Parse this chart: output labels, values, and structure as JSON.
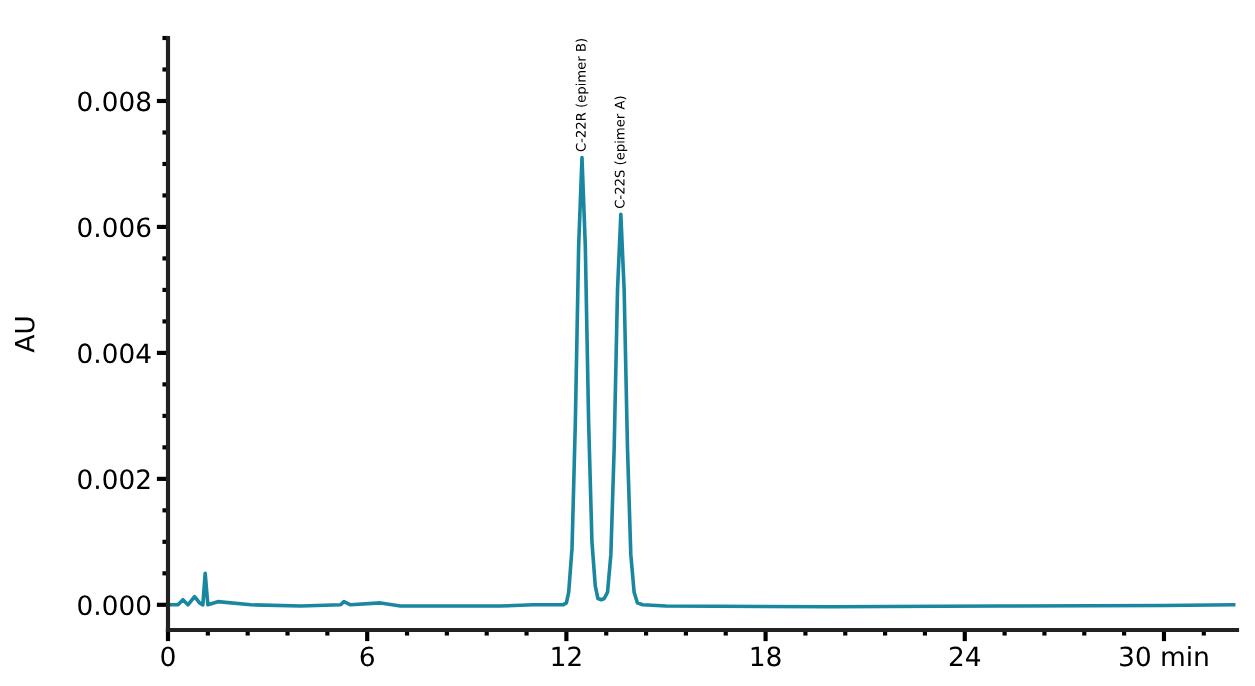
{
  "chart_data": {
    "type": "line",
    "ylabel": "AU",
    "x": [
      0,
      0.3,
      0.45,
      0.6,
      0.8,
      0.95,
      1.05,
      1.12,
      1.2,
      1.5,
      2.5,
      4,
      5.2,
      5.3,
      5.5,
      6.4,
      7,
      10,
      11,
      11.9,
      12.0,
      12.07,
      12.17,
      12.27,
      12.37,
      12.47,
      12.57,
      12.67,
      12.77,
      12.87,
      12.95,
      13.05,
      13.14,
      13.24,
      13.34,
      13.44,
      13.54,
      13.64,
      13.74,
      13.84,
      13.94,
      14.04,
      14.14,
      14.3,
      15,
      20,
      25,
      30,
      32.1
    ],
    "series": [
      {
        "color": "#1a87a0",
        "values": [
          0.0,
          0.0,
          8e-05,
          0.0,
          0.00013,
          3e-05,
          0.0,
          0.0005,
          0.0,
          5e-05,
          0.0,
          -2e-05,
          0.0,
          5e-05,
          0.0,
          3e-05,
          -2e-05,
          -2e-05,
          0.0,
          0.0,
          3e-05,
          0.0002,
          0.0009,
          0.0029,
          0.0057,
          0.0071,
          0.0057,
          0.0029,
          0.001,
          0.0003,
          0.0001,
          8e-05,
          0.0001,
          0.0002,
          0.0008,
          0.0025,
          0.005,
          0.0062,
          0.005,
          0.0025,
          0.0008,
          0.0002,
          3e-05,
          0.0,
          -2e-05,
          -3e-05,
          -2e-05,
          -1e-05,
          0.0
        ]
      }
    ],
    "annotations": [
      {
        "text": "C-22R (epimer B)",
        "x": 12.47,
        "y": 0.0071
      },
      {
        "text": "C-22S (epimer A)",
        "x": 13.64,
        "y": 0.0062
      }
    ],
    "xlim": [
      0,
      32.2
    ],
    "ylim": [
      -0.0004,
      0.009
    ],
    "xticks": [
      0,
      6,
      12,
      18,
      24,
      {
        "value": 30,
        "label": "30 min"
      }
    ],
    "yticks": [
      {
        "value": 0,
        "label": "0.000"
      },
      {
        "value": 0.002,
        "label": "0.002"
      },
      {
        "value": 0.004,
        "label": "0.004"
      },
      {
        "value": 0.006,
        "label": "0.006"
      },
      {
        "value": 0.008,
        "label": "0.008"
      }
    ],
    "grid": false,
    "legend": false
  }
}
